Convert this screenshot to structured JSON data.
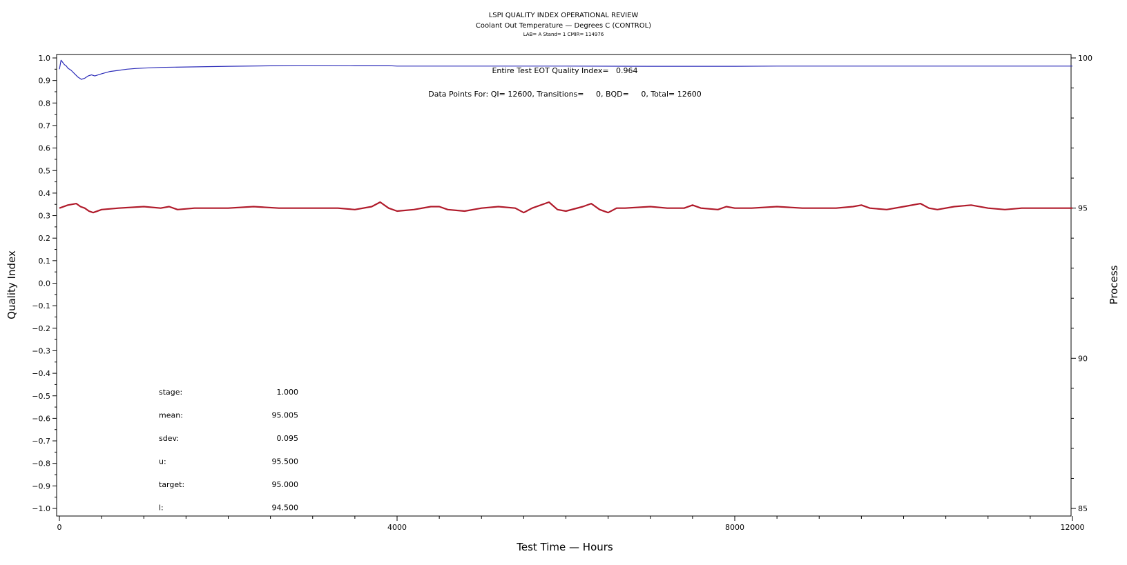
{
  "chart_data": {
    "type": "line",
    "title": "LSPI QUALITY INDEX OPERATIONAL REVIEW",
    "subtitle": "Coolant Out Temperature — Degrees C (CONTROL)",
    "subtitle2": "LAB= A Stand= 1 CMIR= 114976",
    "xlabel": "Test Time — Hours",
    "ylabel": "Quality Index",
    "y2label": "Process",
    "xlim": [
      0,
      12000
    ],
    "ylim": [
      -1.0,
      1.0
    ],
    "y2lim": [
      85,
      100
    ],
    "xticks": [
      0,
      4000,
      8000,
      12000
    ],
    "yticks": [
      1.0,
      0.9,
      0.8,
      0.7,
      0.6,
      0.5,
      0.4,
      0.3,
      0.2,
      0.1,
      0.0,
      -0.1,
      -0.2,
      -0.3,
      -0.4,
      -0.5,
      -0.6,
      -0.7,
      -0.8,
      -0.9,
      -1.0
    ],
    "ytick_labels": [
      "1.0",
      "0.9",
      "0.8",
      "0.7",
      "0.6",
      "0.5",
      "0.4",
      "0.3",
      "0.2",
      "0.1",
      "0.0",
      "−0.1",
      "−0.2",
      "−0.3",
      "−0.4",
      "−0.5",
      "−0.6",
      "−0.7",
      "−0.8",
      "−0.9",
      "−1.0"
    ],
    "y2ticks": [
      100,
      95,
      90,
      85
    ],
    "grid": false,
    "annotations": {
      "eot_quality_index": "Entire Test EOT Quality Index=   0.964",
      "data_points": "Data Points For: QI= 12600, Transitions=     0, BQD=     0, Total= 12600"
    },
    "stats": [
      {
        "label": "stage:",
        "value": "1.000"
      },
      {
        "label": "mean:",
        "value": "95.005"
      },
      {
        "label": "sdev:",
        "value": "0.095"
      },
      {
        "label": "u:",
        "value": "95.500"
      },
      {
        "label": "target:",
        "value": "95.000"
      },
      {
        "label": "l:",
        "value": "94.500"
      }
    ],
    "series": [
      {
        "axis": "left",
        "color": "#2a2ab8",
        "x": [
          0,
          20,
          40,
          60,
          80,
          100,
          140,
          180,
          220,
          260,
          300,
          340,
          380,
          420,
          500,
          600,
          700,
          800,
          900,
          1000,
          1200,
          1500,
          2000,
          2500,
          2800,
          3000,
          3500,
          3900,
          4000,
          5000,
          6000,
          7000,
          8000,
          8500,
          9000,
          10000,
          11000,
          12000
        ],
        "values": [
          0.95,
          0.99,
          0.98,
          0.97,
          0.965,
          0.955,
          0.945,
          0.93,
          0.915,
          0.905,
          0.91,
          0.92,
          0.925,
          0.92,
          0.93,
          0.94,
          0.945,
          0.95,
          0.953,
          0.955,
          0.958,
          0.96,
          0.963,
          0.965,
          0.967,
          0.967,
          0.966,
          0.966,
          0.964,
          0.964,
          0.964,
          0.963,
          0.963,
          0.964,
          0.964,
          0.964,
          0.964,
          0.964
        ]
      },
      {
        "axis": "right",
        "color": "#b01a2a",
        "x": [
          0,
          100,
          200,
          250,
          300,
          350,
          400,
          500,
          700,
          1000,
          1200,
          1300,
          1400,
          1600,
          2000,
          2300,
          2600,
          3000,
          3300,
          3500,
          3700,
          3800,
          3900,
          4000,
          4200,
          4400,
          4500,
          4600,
          4800,
          5000,
          5200,
          5400,
          5500,
          5600,
          5800,
          5900,
          6000,
          6200,
          6300,
          6400,
          6500,
          6600,
          6700,
          7000,
          7200,
          7400,
          7500,
          7600,
          7800,
          7900,
          8000,
          8200,
          8500,
          8800,
          9000,
          9200,
          9400,
          9500,
          9600,
          9800,
          10000,
          10200,
          10300,
          10400,
          10600,
          10800,
          11000,
          11200,
          11400,
          11600,
          11800,
          12000
        ],
        "values": [
          95.0,
          95.1,
          95.15,
          95.05,
          95.0,
          94.9,
          94.85,
          94.95,
          95.0,
          95.05,
          95.0,
          95.05,
          94.95,
          95.0,
          95.0,
          95.05,
          95.0,
          95.0,
          95.0,
          94.95,
          95.05,
          95.2,
          95.0,
          94.9,
          94.95,
          95.05,
          95.05,
          94.95,
          94.9,
          95.0,
          95.05,
          95.0,
          94.85,
          95.0,
          95.2,
          94.95,
          94.9,
          95.05,
          95.15,
          94.95,
          94.85,
          95.0,
          95.0,
          95.05,
          95.0,
          95.0,
          95.1,
          95.0,
          94.95,
          95.05,
          95.0,
          95.0,
          95.05,
          95.0,
          95.0,
          95.0,
          95.05,
          95.1,
          95.0,
          94.95,
          95.05,
          95.15,
          95.0,
          94.95,
          95.05,
          95.1,
          95.0,
          94.95,
          95.0,
          95.0,
          95.0,
          95.0
        ]
      }
    ]
  }
}
